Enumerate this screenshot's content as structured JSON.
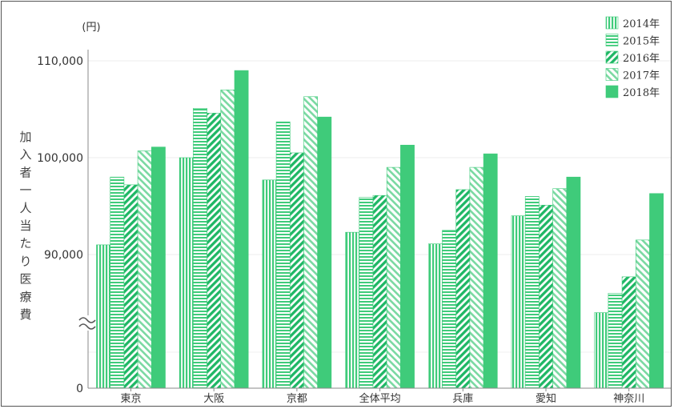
{
  "chart_data": {
    "type": "bar",
    "title": "",
    "unit_label": "(円)",
    "ylabel": "加入者一人当たり医療費",
    "xlabel": "",
    "ylim": [
      85000,
      110000
    ],
    "axis_break": true,
    "y_ticks": [
      {
        "value": 0,
        "label": "0"
      },
      {
        "value": 90000,
        "label": "90,000"
      },
      {
        "value": 100000,
        "label": "100,000"
      },
      {
        "value": 110000,
        "label": "110,000"
      }
    ],
    "categories": [
      "東京",
      "大阪",
      "京都",
      "全体平均",
      "兵庫",
      "愛知",
      "神奈川"
    ],
    "series": [
      {
        "name": "2014年",
        "pattern": "vertical-stripes",
        "values": [
          91000,
          100000,
          97700,
          92300,
          91100,
          94000,
          84000
        ]
      },
      {
        "name": "2015年",
        "pattern": "horizontal-stripes",
        "values": [
          98000,
          105100,
          103700,
          95900,
          92500,
          96000,
          86000
        ]
      },
      {
        "name": "2016年",
        "pattern": "diagonal-down",
        "values": [
          97200,
          104600,
          100500,
          96100,
          96700,
          95100,
          87700
        ]
      },
      {
        "name": "2017年",
        "pattern": "diagonal-up",
        "values": [
          100700,
          107000,
          106300,
          99000,
          99000,
          96800,
          91500
        ]
      },
      {
        "name": "2018年",
        "pattern": "solid",
        "values": [
          101100,
          109000,
          104200,
          101300,
          100400,
          98000,
          96300
        ]
      }
    ],
    "legend_position": "top-right",
    "grid": true,
    "color": "#3fcb7a"
  }
}
